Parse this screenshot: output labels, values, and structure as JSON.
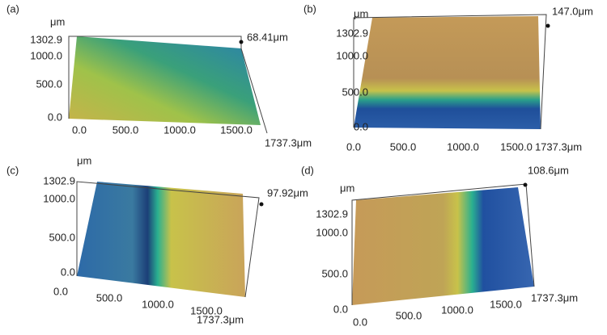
{
  "panels": [
    {
      "label": "(a)",
      "unit": "μm",
      "height": "68.41μm",
      "y_ticks": [
        "1302.9",
        "1000.0",
        "500.0",
        "0.0"
      ],
      "x_ticks": [
        "0.0",
        "500.0",
        "1000.0",
        "1500.0",
        "1737.3μm"
      ]
    },
    {
      "label": "(b)",
      "unit": "μm",
      "height": "147.0μm",
      "y_ticks": [
        "1302.9",
        "1000.0",
        "500.0",
        "0.0"
      ],
      "x_ticks": [
        "0.0",
        "500.0",
        "1000.0",
        "1500.0",
        "1737.3μm"
      ]
    },
    {
      "label": "(c)",
      "unit": "μm",
      "height": "97.92μm",
      "y_ticks": [
        "1302.9",
        "1000.0",
        "500.0",
        "0.0"
      ],
      "x_ticks": [
        "0.0",
        "500.0",
        "1000.0",
        "1500.0",
        "1737.3μm"
      ]
    },
    {
      "label": "(d)",
      "unit": "μm",
      "height": "108.6μm",
      "y_ticks": [
        "1302.9",
        "1000.0",
        "500.0",
        "0.0"
      ],
      "x_ticks": [
        "0.0",
        "500.0",
        "1000.0",
        "1500.0",
        "1737.3μm"
      ]
    }
  ]
}
